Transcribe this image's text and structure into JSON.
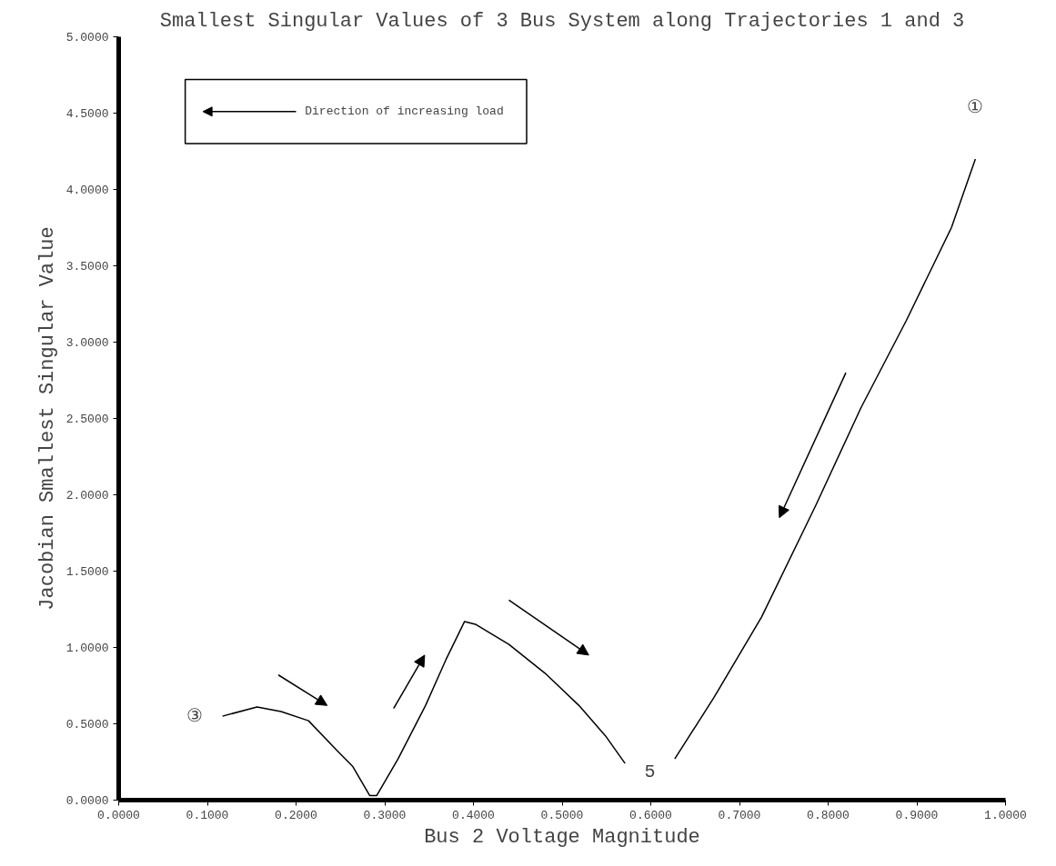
{
  "chart_data": {
    "type": "line",
    "title": "Smallest Singular Values of 3 Bus System along Trajectories 1 and 3",
    "xlabel": "Bus 2 Voltage Magnitude",
    "ylabel": "Jacobian Smallest Singular Value",
    "series": [
      {
        "color": "#000000",
        "x": [
          0.117,
          0.156,
          0.183,
          0.214,
          0.247,
          0.264,
          0.283,
          0.291,
          0.315,
          0.346,
          0.369,
          0.39,
          0.403,
          0.44,
          0.481,
          0.519,
          0.549,
          0.571
        ],
        "values": [
          0.55,
          0.61,
          0.58,
          0.52,
          0.32,
          0.22,
          0.03,
          0.03,
          0.27,
          0.62,
          0.92,
          1.17,
          1.15,
          1.02,
          0.83,
          0.62,
          0.42,
          0.24
        ]
      },
      {
        "color": "#000000",
        "x": [
          0.627,
          0.671,
          0.725,
          0.786,
          0.837,
          0.888,
          0.939,
          0.966
        ],
        "values": [
          0.27,
          0.67,
          1.2,
          1.93,
          2.57,
          3.14,
          3.75,
          4.2
        ]
      }
    ],
    "annotations": [
      "Direction of increasing load",
      "①",
      "③",
      "5"
    ],
    "xlim": [
      0,
      1
    ],
    "ylim": [
      0,
      5
    ],
    "xticks": [
      {
        "value": 0,
        "label": "0.0000"
      },
      {
        "value": 0.1,
        "label": "0.1000"
      },
      {
        "value": 0.2,
        "label": "0.2000"
      },
      {
        "value": 0.3,
        "label": "0.3000"
      },
      {
        "value": 0.4,
        "label": "0.4000"
      },
      {
        "value": 0.5,
        "label": "0.5000"
      },
      {
        "value": 0.6,
        "label": "0.6000"
      },
      {
        "value": 0.7,
        "label": "0.7000"
      },
      {
        "value": 0.8,
        "label": "0.8000"
      },
      {
        "value": 0.9,
        "label": "0.9000"
      },
      {
        "value": 1,
        "label": "1.0000"
      }
    ],
    "yticks": [
      {
        "value": 0,
        "label": "0.0000"
      },
      {
        "value": 0.5,
        "label": "0.5000"
      },
      {
        "value": 1,
        "label": "1.0000"
      },
      {
        "value": 1.5,
        "label": "1.5000"
      },
      {
        "value": 2,
        "label": "2.0000"
      },
      {
        "value": 2.5,
        "label": "2.5000"
      },
      {
        "value": 3,
        "label": "3.0000"
      },
      {
        "value": 3.5,
        "label": "3.5000"
      },
      {
        "value": 4,
        "label": "4.0000"
      },
      {
        "value": 4.5,
        "label": "4.5000"
      },
      {
        "value": 5,
        "label": "5.0000"
      }
    ],
    "grid": false
  }
}
